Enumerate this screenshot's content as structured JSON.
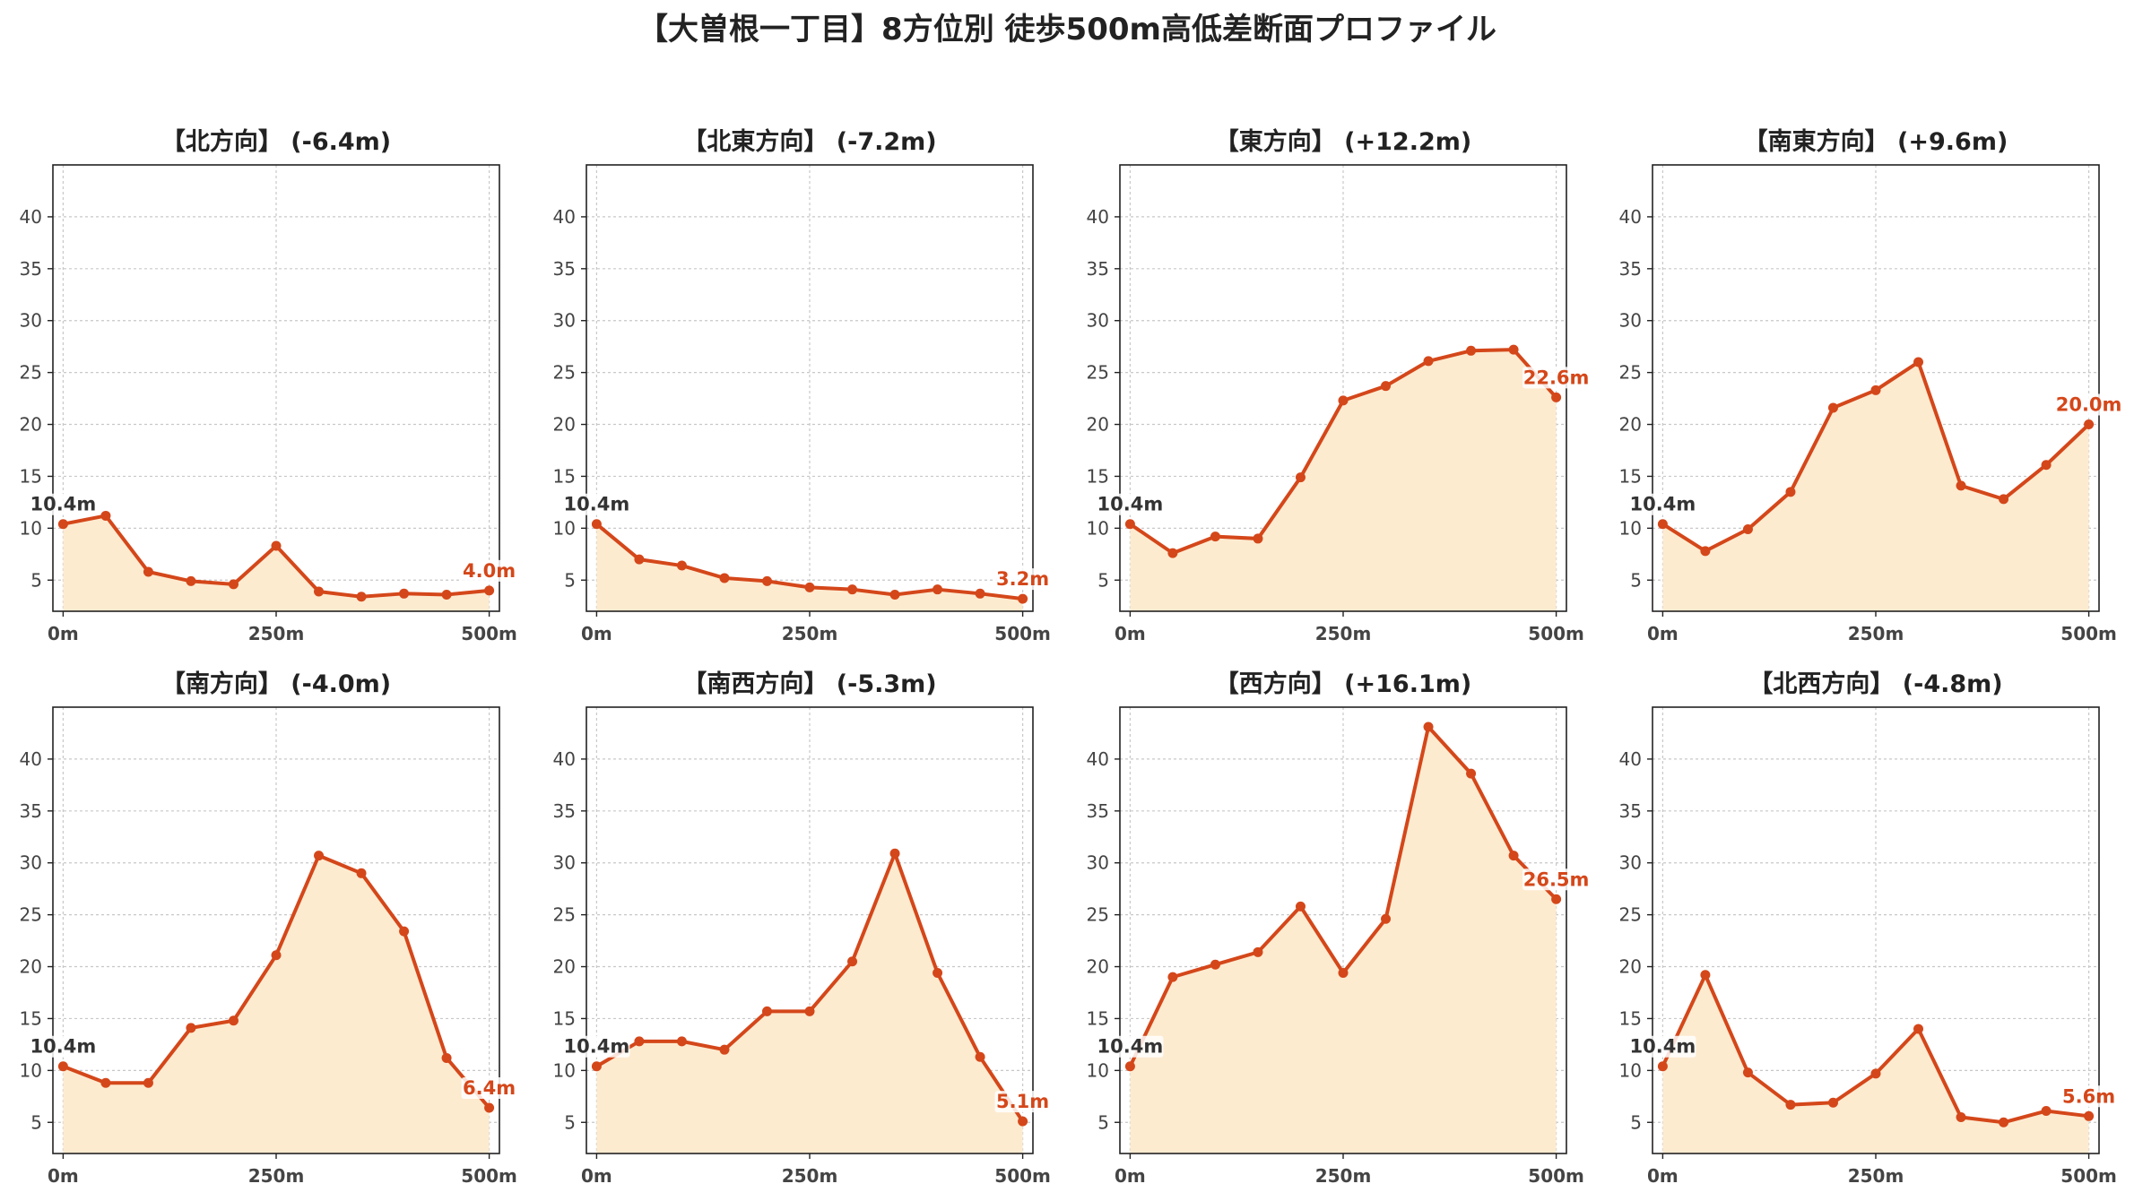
{
  "title": "【大曽根一丁目】8方位別 徒歩500m高低差断面プロファイル",
  "colors": {
    "line": "#d4471a",
    "fill": "#fdebd0",
    "start_label": "#333333",
    "end_label": "#d4471a"
  },
  "chart_data": [
    {
      "type": "area",
      "title": "【北方向】 (-6.4m)",
      "x": [
        0,
        50,
        100,
        150,
        200,
        250,
        300,
        350,
        400,
        450,
        500
      ],
      "values": [
        10.4,
        11.2,
        5.8,
        4.9,
        4.6,
        8.3,
        3.9,
        3.4,
        3.7,
        3.6,
        4.0
      ],
      "start_label": "10.4m",
      "end_label": "4.0m",
      "x_ticks": [
        "0m",
        "250m",
        "500m"
      ],
      "y_ticks": [
        5,
        10,
        15,
        20,
        25,
        30,
        35,
        40
      ],
      "ylim": [
        2,
        45
      ],
      "xlim": [
        -12,
        512
      ],
      "grid": true
    },
    {
      "type": "area",
      "title": "【北東方向】 (-7.2m)",
      "x": [
        0,
        50,
        100,
        150,
        200,
        250,
        300,
        350,
        400,
        450,
        500
      ],
      "values": [
        10.4,
        7.0,
        6.4,
        5.2,
        4.9,
        4.3,
        4.1,
        3.6,
        4.1,
        3.7,
        3.2
      ],
      "start_label": "10.4m",
      "end_label": "3.2m",
      "x_ticks": [
        "0m",
        "250m",
        "500m"
      ],
      "y_ticks": [
        5,
        10,
        15,
        20,
        25,
        30,
        35,
        40
      ],
      "ylim": [
        2,
        45
      ],
      "xlim": [
        -12,
        512
      ],
      "grid": true
    },
    {
      "type": "area",
      "title": "【東方向】 (+12.2m)",
      "x": [
        0,
        50,
        100,
        150,
        200,
        250,
        300,
        350,
        400,
        450,
        500
      ],
      "values": [
        10.4,
        7.6,
        9.2,
        9.0,
        14.9,
        22.3,
        23.7,
        26.1,
        27.1,
        27.2,
        22.6
      ],
      "start_label": "10.4m",
      "end_label": "22.6m",
      "x_ticks": [
        "0m",
        "250m",
        "500m"
      ],
      "y_ticks": [
        5,
        10,
        15,
        20,
        25,
        30,
        35,
        40
      ],
      "ylim": [
        2,
        45
      ],
      "xlim": [
        -12,
        512
      ],
      "grid": true
    },
    {
      "type": "area",
      "title": "【南東方向】 (+9.6m)",
      "x": [
        0,
        50,
        100,
        150,
        200,
        250,
        300,
        350,
        400,
        450,
        500
      ],
      "values": [
        10.4,
        7.8,
        9.9,
        13.5,
        21.6,
        23.3,
        26.0,
        14.1,
        12.8,
        16.1,
        20.0
      ],
      "start_label": "10.4m",
      "end_label": "20.0m",
      "x_ticks": [
        "0m",
        "250m",
        "500m"
      ],
      "y_ticks": [
        5,
        10,
        15,
        20,
        25,
        30,
        35,
        40
      ],
      "ylim": [
        2,
        45
      ],
      "xlim": [
        -12,
        512
      ],
      "grid": true
    },
    {
      "type": "area",
      "title": "【南方向】 (-4.0m)",
      "x": [
        0,
        50,
        100,
        150,
        200,
        250,
        300,
        350,
        400,
        450,
        500
      ],
      "values": [
        10.4,
        8.8,
        8.8,
        14.1,
        14.8,
        21.1,
        30.7,
        29.0,
        23.4,
        11.2,
        6.4
      ],
      "start_label": "10.4m",
      "end_label": "6.4m",
      "x_ticks": [
        "0m",
        "250m",
        "500m"
      ],
      "y_ticks": [
        5,
        10,
        15,
        20,
        25,
        30,
        35,
        40
      ],
      "ylim": [
        2,
        45
      ],
      "xlim": [
        -12,
        512
      ],
      "grid": true
    },
    {
      "type": "area",
      "title": "【南西方向】 (-5.3m)",
      "x": [
        0,
        50,
        100,
        150,
        200,
        250,
        300,
        350,
        400,
        450,
        500
      ],
      "values": [
        10.4,
        12.8,
        12.8,
        12.0,
        15.7,
        15.7,
        20.5,
        30.9,
        19.4,
        11.3,
        5.1
      ],
      "start_label": "10.4m",
      "end_label": "5.1m",
      "x_ticks": [
        "0m",
        "250m",
        "500m"
      ],
      "y_ticks": [
        5,
        10,
        15,
        20,
        25,
        30,
        35,
        40
      ],
      "ylim": [
        2,
        45
      ],
      "xlim": [
        -12,
        512
      ],
      "grid": true
    },
    {
      "type": "area",
      "title": "【西方向】 (+16.1m)",
      "x": [
        0,
        50,
        100,
        150,
        200,
        250,
        300,
        350,
        400,
        450,
        500
      ],
      "values": [
        10.4,
        19.0,
        20.2,
        21.4,
        25.8,
        19.4,
        24.6,
        43.1,
        38.6,
        30.7,
        26.5
      ],
      "start_label": "10.4m",
      "end_label": "26.5m",
      "x_ticks": [
        "0m",
        "250m",
        "500m"
      ],
      "y_ticks": [
        5,
        10,
        15,
        20,
        25,
        30,
        35,
        40
      ],
      "ylim": [
        2,
        45
      ],
      "xlim": [
        -12,
        512
      ],
      "grid": true
    },
    {
      "type": "area",
      "title": "【北西方向】 (-4.8m)",
      "x": [
        0,
        50,
        100,
        150,
        200,
        250,
        300,
        350,
        400,
        450,
        500
      ],
      "values": [
        10.4,
        19.2,
        9.8,
        6.7,
        6.9,
        9.7,
        14.0,
        5.5,
        5.0,
        6.1,
        5.6
      ],
      "start_label": "10.4m",
      "end_label": "5.6m",
      "x_ticks": [
        "0m",
        "250m",
        "500m"
      ],
      "y_ticks": [
        5,
        10,
        15,
        20,
        25,
        30,
        35,
        40
      ],
      "ylim": [
        2,
        45
      ],
      "xlim": [
        -12,
        512
      ],
      "grid": true
    }
  ]
}
